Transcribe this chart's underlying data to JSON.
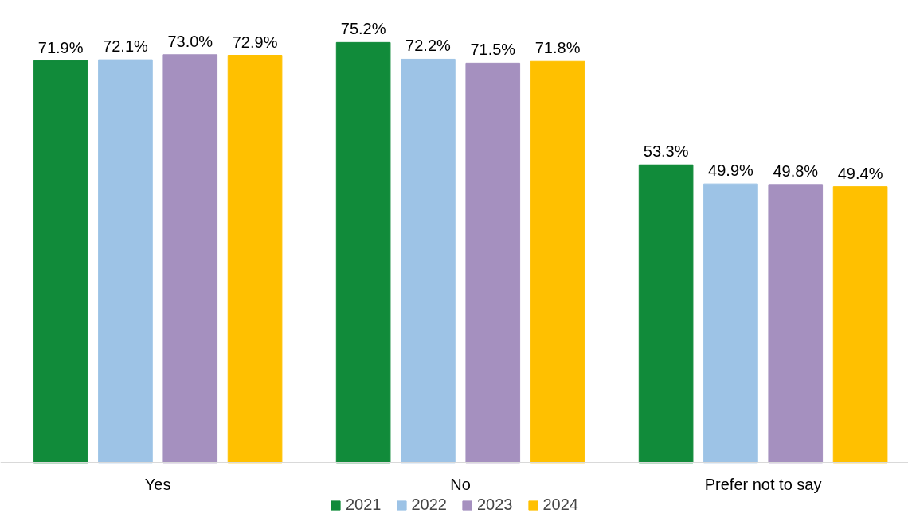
{
  "chart_data": {
    "type": "bar",
    "categories": [
      "Yes",
      "No",
      "Prefer not to say"
    ],
    "series": [
      {
        "name": "2021",
        "color": "#118b3a",
        "values": [
          71.9,
          75.2,
          53.3
        ],
        "value_labels": [
          "71.9%",
          "75.2%",
          "53.3%"
        ]
      },
      {
        "name": "2022",
        "color": "#9dc3e6",
        "values": [
          72.1,
          72.2,
          49.9
        ],
        "value_labels": [
          "72.1%",
          "72.2%",
          "49.9%"
        ]
      },
      {
        "name": "2023",
        "color": "#a590bf",
        "values": [
          73.0,
          71.5,
          49.8
        ],
        "value_labels": [
          "73.0%",
          "71.5%",
          "49.8%"
        ]
      },
      {
        "name": "2024",
        "color": "#ffc000",
        "values": [
          72.9,
          71.8,
          49.4
        ],
        "value_labels": [
          "72.9%",
          "71.8%",
          "49.4%"
        ]
      }
    ],
    "grid": false,
    "legend": "bottom",
    "tick_labels": "x"
  }
}
